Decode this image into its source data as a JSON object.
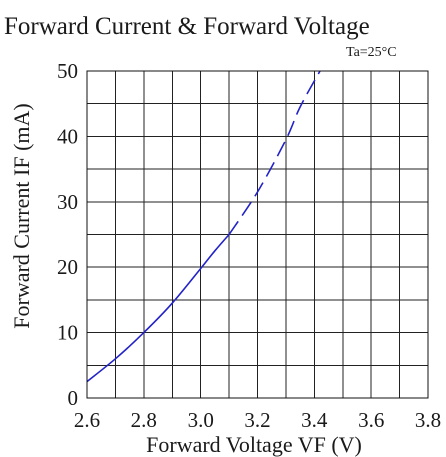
{
  "chart_data": {
    "type": "line",
    "title": "Forward Current & Forward Voltage",
    "condition": "Ta=25°C",
    "xlabel": "Forward Voltage  VF (V)",
    "ylabel": "Forward Current IF (mA)",
    "xlim": [
      2.6,
      3.8
    ],
    "ylim": [
      0,
      50
    ],
    "x_ticks": [
      "2.6",
      "2.8",
      "3.0",
      "3.2",
      "3.4",
      "3.6",
      "3.8"
    ],
    "y_ticks": [
      "0",
      "10",
      "20",
      "30",
      "40",
      "50"
    ],
    "grid": true,
    "legend": "none",
    "series": [
      {
        "style": "solid",
        "color": "#2323c8",
        "points": [
          [
            2.6,
            2.5
          ],
          [
            2.7,
            6.0
          ],
          [
            2.8,
            10.0
          ],
          [
            2.9,
            14.5
          ],
          [
            3.0,
            19.8
          ],
          [
            3.05,
            22.5
          ],
          [
            3.1,
            25.0
          ]
        ]
      },
      {
        "style": "dashed",
        "color": "#2323c8",
        "points": [
          [
            3.1,
            25.0
          ],
          [
            3.2,
            31.5
          ],
          [
            3.3,
            39.5
          ],
          [
            3.35,
            44.5
          ],
          [
            3.42,
            50.0
          ]
        ]
      }
    ]
  }
}
